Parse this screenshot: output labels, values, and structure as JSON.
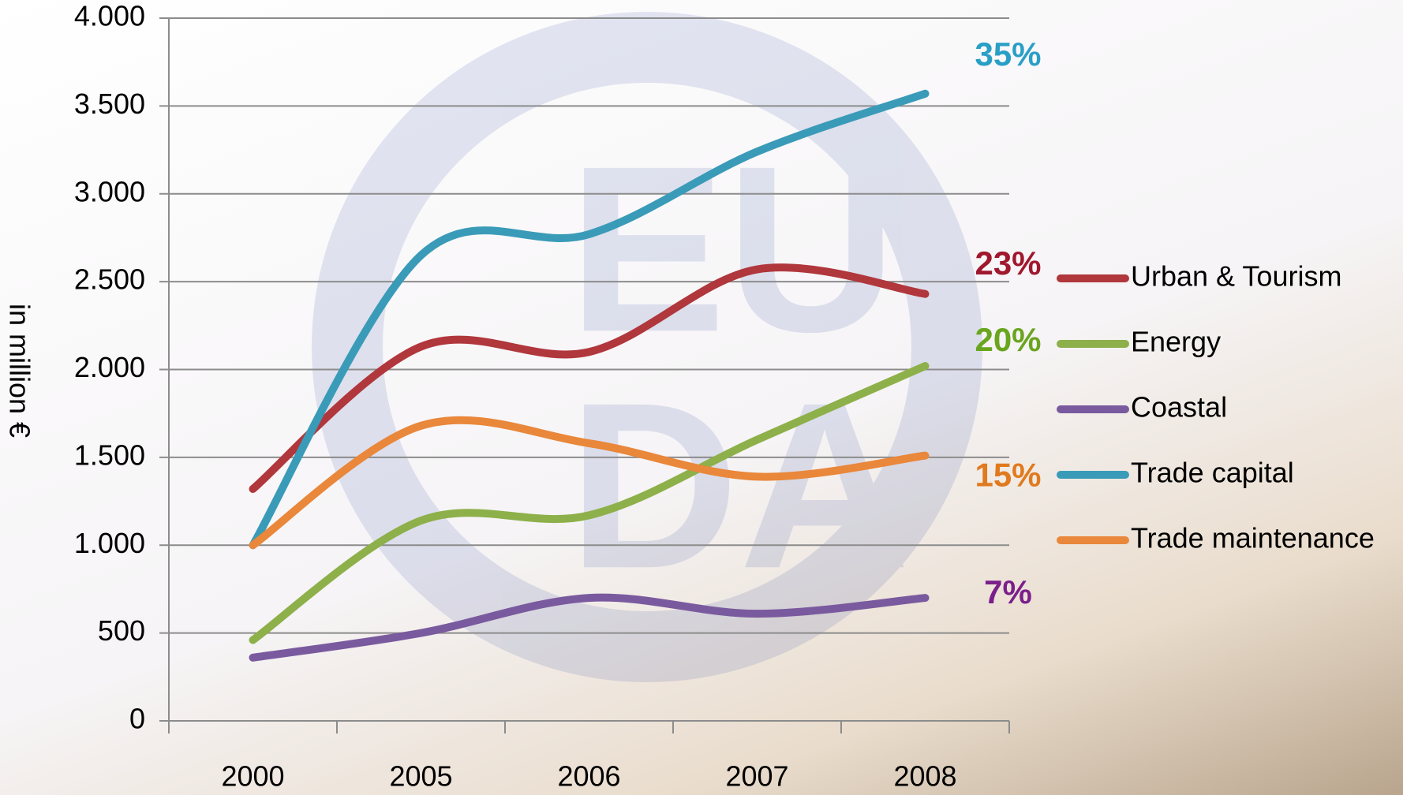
{
  "chart_data": {
    "type": "line",
    "y_label": "in million €",
    "categories": [
      "2000",
      "2005",
      "2006",
      "2007",
      "2008"
    ],
    "series": [
      {
        "name": "Urban & Tourism",
        "color": "#b0373c",
        "values": [
          1320,
          2130,
          2100,
          2570,
          2430
        ],
        "end_label": "23%",
        "end_label_color": "#a0182e"
      },
      {
        "name": "Energy",
        "color": "#8db04a",
        "values": [
          460,
          1140,
          1170,
          1600,
          2020
        ],
        "end_label": "20%",
        "end_label_color": "#6aa51e"
      },
      {
        "name": "Coastal",
        "color": "#7a5a9e",
        "values": [
          360,
          500,
          700,
          610,
          700
        ],
        "end_label": "7%",
        "end_label_color": "#7a1f8a"
      },
      {
        "name": "Trade capital",
        "color": "#3a9bb8",
        "values": [
          1000,
          2650,
          2770,
          3240,
          3570
        ],
        "end_label": "35%",
        "end_label_color": "#2a9fc6"
      },
      {
        "name": "Trade maintenance",
        "color": "#e9873b",
        "values": [
          1000,
          1680,
          1580,
          1390,
          1510
        ],
        "end_label": "15%",
        "end_label_color": "#e07a1e"
      }
    ],
    "ylim": [
      0,
      4000
    ],
    "yticks": [
      0,
      500,
      {
        "value": 1000,
        "label": "1.000"
      },
      {
        "value": 1500,
        "label": "1.500"
      },
      {
        "value": 2000,
        "label": "2.000"
      },
      {
        "value": 2500,
        "label": "2.500"
      },
      {
        "value": 3000,
        "label": "3.000"
      },
      {
        "value": 3500,
        "label": "3.500"
      },
      {
        "value": 4000,
        "label": "4.000"
      }
    ],
    "grid": true,
    "legend": "right"
  }
}
